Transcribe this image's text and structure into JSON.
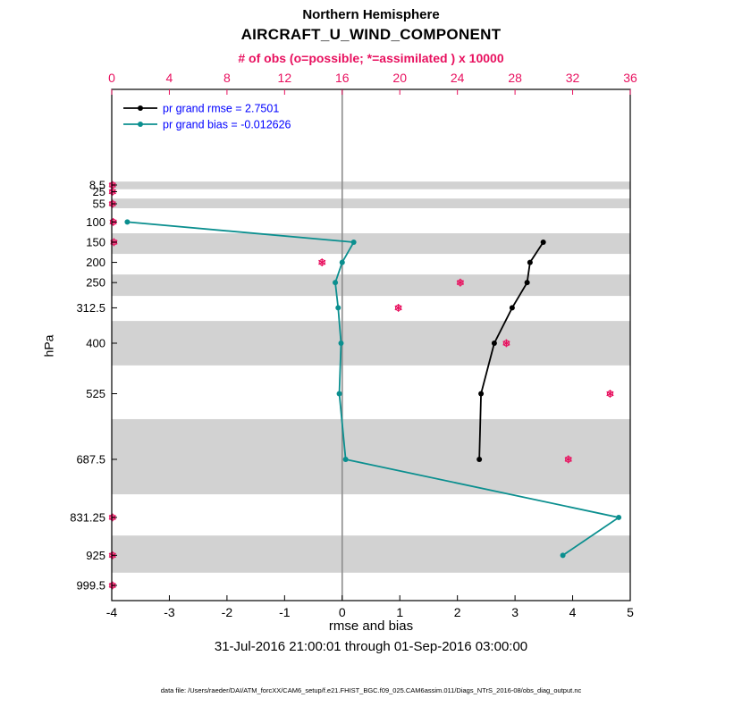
{
  "colors": {
    "obs": "#e8115f",
    "rmse": "#000000",
    "bias": "#0b8f8f",
    "legend_text": "#0000ff",
    "band": "#d2d2d2",
    "zero_line": "#8c8c8c",
    "axis": "#000000"
  },
  "header": {
    "title": "Northern Hemisphere",
    "subtitle": "AIRCRAFT_U_WIND_COMPONENT"
  },
  "footer": {
    "xlabel": "rmse and bias",
    "timespan": "31-Jul-2016 21:00:01 through 01-Sep-2016 03:00:00",
    "datafile": "data file: /Users/raeder/DAI/ATM_forcXX/CAM6_setup/f.e21.FHIST_BGC.f09_025.CAM6assim.011/Diags_NTrS_2016-08/obs_diag_output.nc"
  },
  "legend": {
    "text_color": "#0000ff"
  },
  "chart_data": {
    "type": "line",
    "title": "Northern Hemisphere",
    "subtitle": "AIRCRAFT_U_WIND_COMPONENT",
    "ylabel": "hPa",
    "xlabel_bottom": "rmse and bias",
    "xlabel_top": "# of obs (o=possible; *=assimilated ) x 10000",
    "x_bottom": {
      "min": -4,
      "max": 5,
      "ticks": [
        -4,
        -3,
        -2,
        -1,
        0,
        1,
        2,
        3,
        4,
        5
      ]
    },
    "x_top": {
      "min": 0,
      "max": 36,
      "ticks": [
        0,
        4,
        8,
        12,
        16,
        20,
        24,
        28,
        32,
        36
      ]
    },
    "y_levels_hpa": [
      8.5,
      25,
      55,
      100,
      150,
      200,
      250,
      312.5,
      400,
      525,
      687.5,
      831.25,
      925,
      999.5
    ],
    "zero_reference_x": 0,
    "gray_bands_hpa": [
      [
        0,
        19
      ],
      [
        42,
        66
      ],
      [
        128,
        179
      ],
      [
        230,
        283
      ],
      [
        345,
        455
      ],
      [
        588,
        774
      ],
      [
        876,
        968
      ]
    ],
    "series": [
      {
        "id": "rmse",
        "name": "pr grand rmse = 2.7501",
        "grand_value": 2.7501,
        "color": "#000000",
        "points": [
          {
            "level": 150,
            "value": 3.49
          },
          {
            "level": 200,
            "value": 3.26
          },
          {
            "level": 250,
            "value": 3.21
          },
          {
            "level": 312.5,
            "value": 2.95
          },
          {
            "level": 400,
            "value": 2.64
          },
          {
            "level": 525,
            "value": 2.41
          },
          {
            "level": 687.5,
            "value": 2.38
          }
        ]
      },
      {
        "id": "bias",
        "name": "pr grand bias = -0.012626",
        "grand_value": -0.012626,
        "color": "#0b8f8f",
        "points": [
          {
            "level": 100,
            "value": -3.73
          },
          {
            "level": 150,
            "value": 0.2
          },
          {
            "level": 200,
            "value": 0.0
          },
          {
            "level": 250,
            "value": -0.12
          },
          {
            "level": 312.5,
            "value": -0.07
          },
          {
            "level": 400,
            "value": -0.02
          },
          {
            "level": 525,
            "value": -0.05
          },
          {
            "level": 687.5,
            "value": 0.06
          },
          {
            "level": 831.25,
            "value": 4.8
          },
          {
            "level": 925,
            "value": 3.83
          }
        ]
      }
    ],
    "obs_counts_x10000": {
      "color": "#e8115f",
      "points": [
        {
          "level": 8.5,
          "value": 0.05
        },
        {
          "level": 25,
          "value": 0.05
        },
        {
          "level": 55,
          "value": 0.05
        },
        {
          "level": 100,
          "value": 0.1
        },
        {
          "level": 150,
          "value": 0.15
        },
        {
          "level": 200,
          "value": 14.6
        },
        {
          "level": 250,
          "value": 24.2
        },
        {
          "level": 312.5,
          "value": 19.9
        },
        {
          "level": 400,
          "value": 27.4
        },
        {
          "level": 525,
          "value": 34.6
        },
        {
          "level": 687.5,
          "value": 31.7
        },
        {
          "level": 831.25,
          "value": 0.05
        },
        {
          "level": 925,
          "value": 0.05
        },
        {
          "level": 999.5,
          "value": 0.05
        }
      ]
    }
  }
}
